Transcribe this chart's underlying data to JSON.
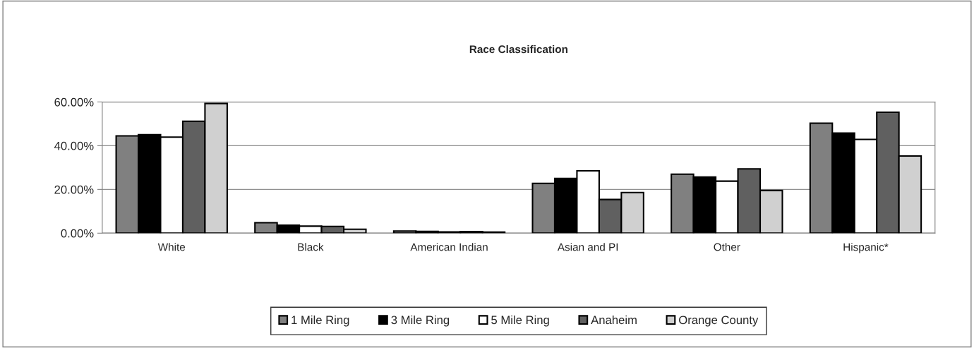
{
  "chart_data": {
    "type": "bar",
    "title": "Race Classification",
    "categories": [
      "White",
      "Black",
      "American Indian",
      "Asian and PI",
      "Other",
      "Hispanic*"
    ],
    "series": [
      {
        "name": "1 Mile Ring",
        "color": "#808080",
        "values": [
          44.5,
          4.8,
          1.0,
          22.8,
          27.0,
          50.3
        ]
      },
      {
        "name": "3 Mile Ring",
        "color": "#000000",
        "values": [
          45.0,
          3.6,
          0.8,
          25.0,
          25.7,
          45.8
        ]
      },
      {
        "name": "5 Mile Ring",
        "color": "#ffffff",
        "values": [
          43.9,
          3.2,
          0.6,
          28.5,
          23.8,
          42.9
        ]
      },
      {
        "name": "Anaheim",
        "color": "#606060",
        "values": [
          51.2,
          3.1,
          0.7,
          15.4,
          29.4,
          55.3
        ]
      },
      {
        "name": "Orange County",
        "color": "#d0d0d0",
        "values": [
          59.3,
          1.8,
          0.5,
          18.6,
          19.5,
          35.3
        ]
      }
    ],
    "ylim": [
      0,
      60
    ],
    "yticks": [
      {
        "value": 0,
        "label": "0.00%"
      },
      {
        "value": 20,
        "label": "20.00%"
      },
      {
        "value": 40,
        "label": "40.00%"
      },
      {
        "value": 60,
        "label": "60.00%"
      }
    ],
    "grid": "y",
    "legend": "bottom"
  }
}
